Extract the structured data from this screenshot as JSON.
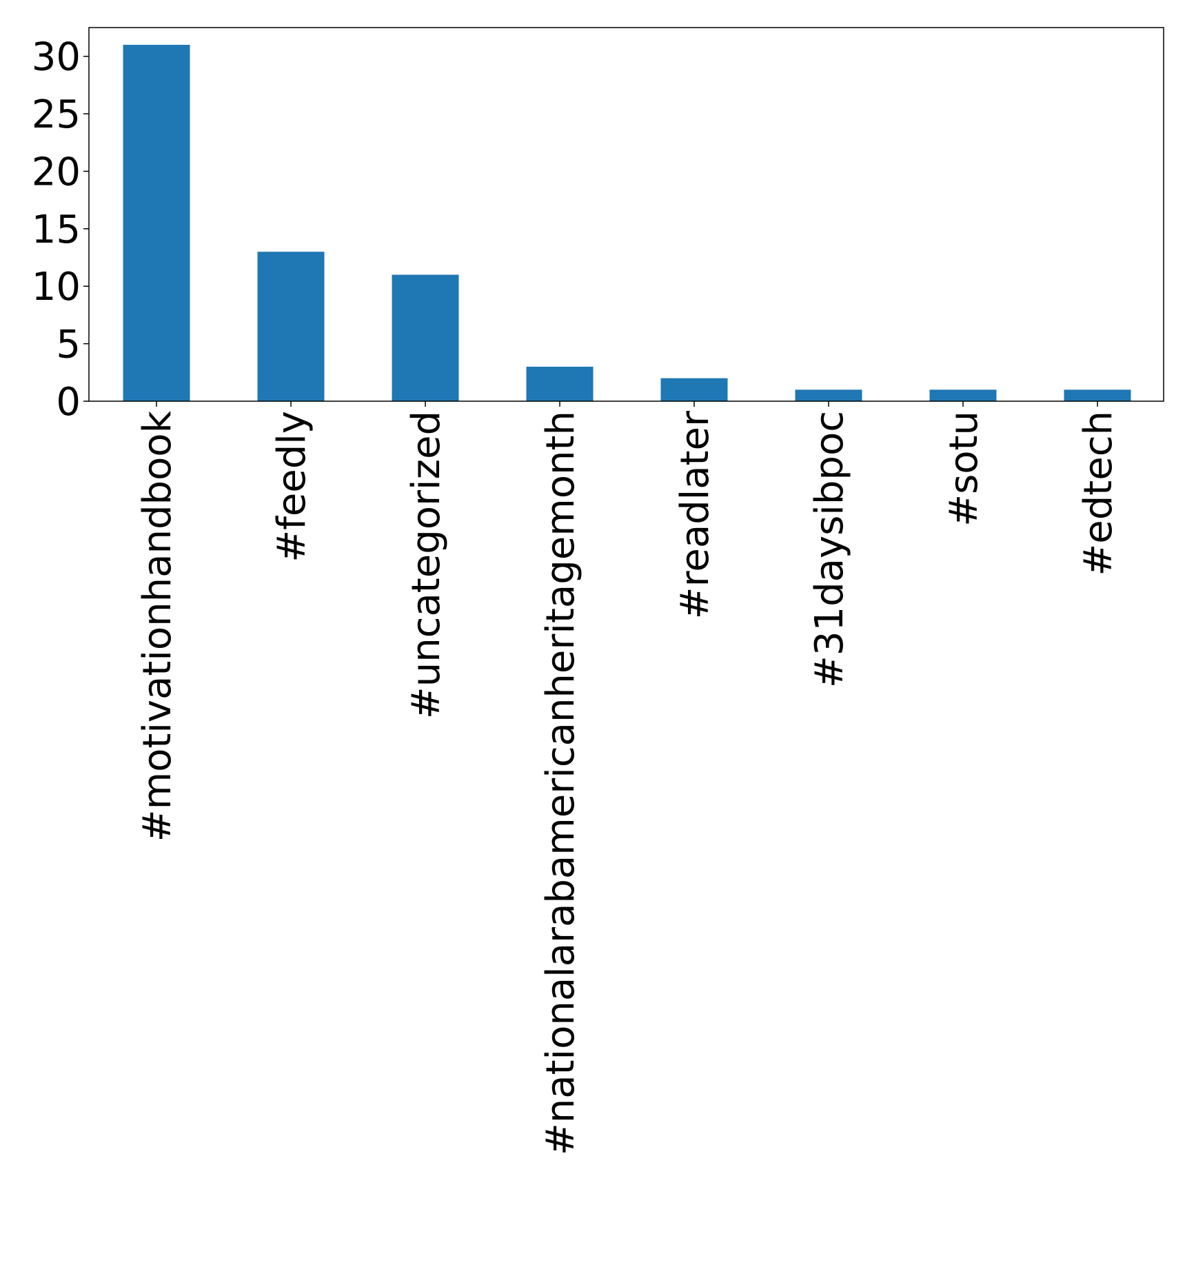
{
  "chart_data": {
    "type": "bar",
    "categories": [
      "#motivationhandbook",
      "#feedly",
      "#uncategorized",
      "#nationalarabamericanheritagemonth",
      "#readlater",
      "#31daysibpoc",
      "#sotu",
      "#edtech"
    ],
    "values": [
      31,
      13,
      11,
      3,
      2,
      1,
      1,
      1
    ],
    "ylim": [
      0,
      32.5
    ],
    "yticks": [
      "0",
      "5",
      "10",
      "15",
      "20",
      "25",
      "30"
    ],
    "bar_color": "#1f77b4",
    "grid": false,
    "legend": false
  }
}
